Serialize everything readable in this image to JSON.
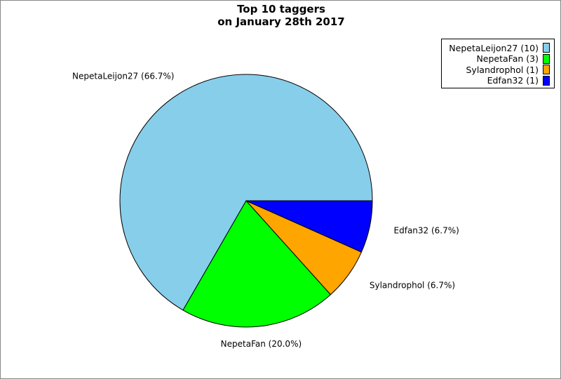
{
  "chart_data": {
    "type": "pie",
    "title_lines": [
      "Top 10 taggers",
      "on January 28th 2017"
    ],
    "slices": [
      {
        "name": "NepetaLeijon27",
        "value": 10,
        "label": "NepetaLeijon27 (66.7%)",
        "legend": "NepetaLeijon27 (10)",
        "color": "#87CEEB"
      },
      {
        "name": "NepetaFan",
        "value": 3,
        "label": "NepetaFan (20.0%)",
        "legend": "NepetaFan (3)",
        "color": "#00FF00"
      },
      {
        "name": "Sylandrophol",
        "value": 1,
        "label": "Sylandrophol (6.7%)",
        "legend": "Sylandrophol (1)",
        "color": "#FFA500"
      },
      {
        "name": "Edfan32",
        "value": 1,
        "label": "Edfan32 (6.7%)",
        "legend": "Edfan32 (1)",
        "color": "#0000FF"
      }
    ],
    "start_angle": "3 o'clock",
    "direction": "counterclockwise",
    "legend_position": "top-right"
  }
}
